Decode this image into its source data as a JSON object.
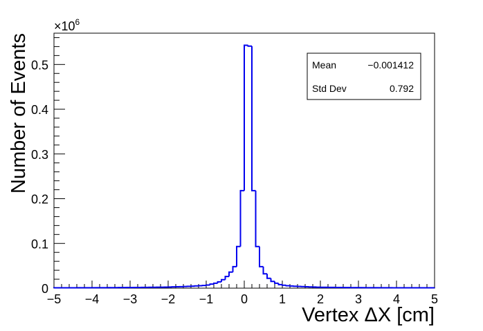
{
  "chart_data": {
    "type": "histogram",
    "xlabel": "Vertex ΔX [cm]",
    "ylabel": "Number of Events",
    "y_exponent_label": "×10",
    "y_exponent_power": "6",
    "xlim": [
      -5,
      5
    ],
    "ylim": [
      0,
      0.57
    ],
    "x_ticks": [
      -5,
      -4,
      -3,
      -2,
      -1,
      0,
      1,
      2,
      3,
      4,
      5
    ],
    "x_tick_labels": [
      "−5",
      "−4",
      "−3",
      "−2",
      "−1",
      "0",
      "1",
      "2",
      "3",
      "4",
      "5"
    ],
    "y_ticks": [
      0,
      0.1,
      0.2,
      0.3,
      0.4,
      0.5
    ],
    "y_tick_labels": [
      "0",
      "0.1",
      "0.2",
      "0.3",
      "0.4",
      "0.5"
    ],
    "bin_edges": [
      -5,
      -4.9,
      -4.8,
      -4.7,
      -4.6,
      -4.5,
      -4.4,
      -4.3,
      -4.2,
      -4.1,
      -4.0,
      -3.9,
      -3.8,
      -3.7,
      -3.6,
      -3.5,
      -3.4,
      -3.3,
      -3.2,
      -3.1,
      -3.0,
      -2.9,
      -2.8,
      -2.7,
      -2.6,
      -2.5,
      -2.4,
      -2.3,
      -2.2,
      -2.1,
      -2.0,
      -1.9,
      -1.8,
      -1.7,
      -1.6,
      -1.5,
      -1.4,
      -1.3,
      -1.2,
      -1.1,
      -1.0,
      -0.9,
      -0.8,
      -0.7,
      -0.6,
      -0.5,
      -0.4,
      -0.3,
      -0.2,
      -0.1,
      0.0,
      0.1,
      0.2,
      0.3,
      0.4,
      0.5,
      0.6,
      0.7,
      0.8,
      0.9,
      1.0,
      1.1,
      1.2,
      1.3,
      1.4,
      1.5,
      1.6,
      1.7,
      1.8,
      1.9,
      2.0,
      2.1,
      2.2,
      2.3,
      2.4,
      2.5,
      2.6,
      2.7,
      2.8,
      2.9,
      3.0,
      3.1,
      3.2,
      3.3,
      3.4,
      3.5,
      3.6,
      3.7,
      3.8,
      3.9,
      4.0,
      4.1,
      4.2,
      4.3,
      4.4,
      4.5,
      4.6,
      4.7,
      4.8,
      4.9,
      5.0
    ],
    "values": [
      0.0008,
      0.0008,
      0.0008,
      0.0008,
      0.0008,
      0.0008,
      0.0009,
      0.0009,
      0.0009,
      0.0009,
      0.001,
      0.001,
      0.001,
      0.001,
      0.0011,
      0.0011,
      0.0012,
      0.0013,
      0.0014,
      0.0015,
      0.0014,
      0.0015,
      0.0016,
      0.0017,
      0.0018,
      0.0019,
      0.002,
      0.0021,
      0.0022,
      0.0024,
      0.0025,
      0.0028,
      0.003,
      0.0033,
      0.0037,
      0.004,
      0.0045,
      0.005,
      0.0055,
      0.006,
      0.007,
      0.009,
      0.011,
      0.014,
      0.019,
      0.026,
      0.036,
      0.048,
      0.093,
      0.218,
      0.543,
      0.541,
      0.218,
      0.093,
      0.048,
      0.032,
      0.022,
      0.015,
      0.011,
      0.008,
      0.0065,
      0.0055,
      0.0048,
      0.0042,
      0.0038,
      0.0034,
      0.003,
      0.0027,
      0.0025,
      0.0022,
      0.002,
      0.0019,
      0.0018,
      0.0017,
      0.0016,
      0.0015,
      0.0014,
      0.0013,
      0.0012,
      0.0012,
      0.0011,
      0.0011,
      0.001,
      0.001,
      0.001,
      0.0009,
      0.0009,
      0.0009,
      0.0009,
      0.0008,
      0.0008,
      0.0008,
      0.0008,
      0.0008,
      0.0008,
      0.0008,
      0.0008,
      0.0008,
      0.0008,
      0.0008
    ],
    "line_color": "#0000ee",
    "stats_box": {
      "mean_label": "Mean",
      "mean_value": "−0.001412",
      "std_label": "Std Dev",
      "std_value": "0.792"
    }
  }
}
